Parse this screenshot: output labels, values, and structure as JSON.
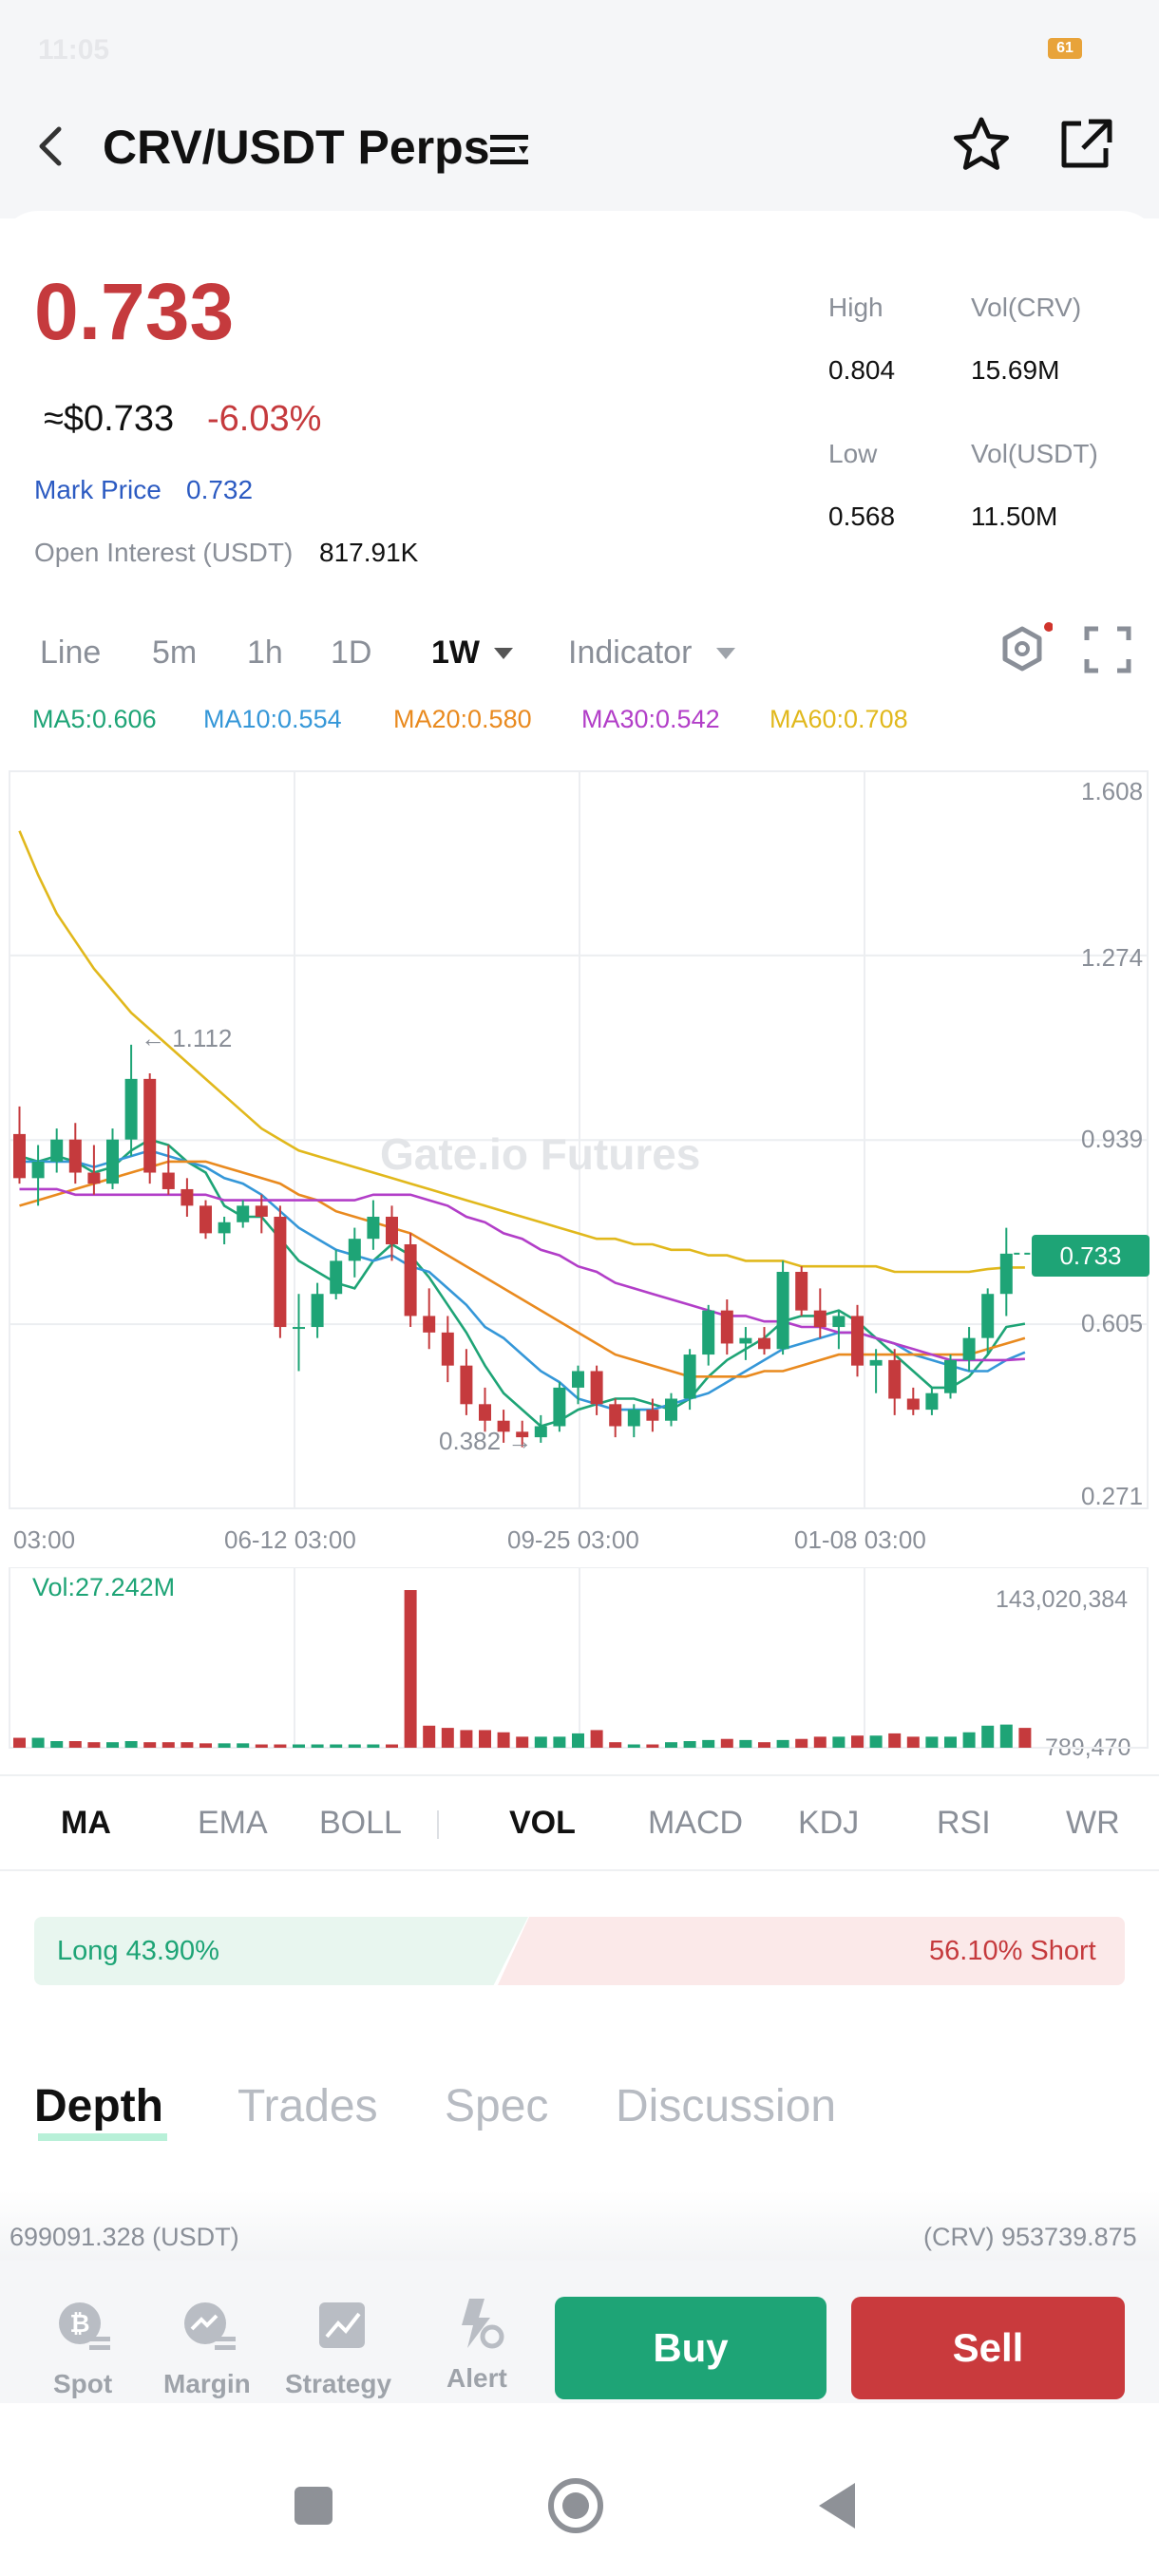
{
  "status_bar": {
    "time": "11:05",
    "battery": "61"
  },
  "header": {
    "title": "CRV/USDT Perps"
  },
  "ticker": {
    "price": "0.733",
    "usd_price": "≈$0.733",
    "change": "-6.03%",
    "mark_price_label": "Mark Price",
    "mark_price_value": "0.732",
    "open_interest_label": "Open Interest (USDT)",
    "open_interest_value": "817.91K",
    "stats": {
      "high_label": "High",
      "high_value": "0.804",
      "low_label": "Low",
      "low_value": "0.568",
      "vol_crv_label": "Vol(CRV)",
      "vol_crv_value": "15.69M",
      "vol_usdt_label": "Vol(USDT)",
      "vol_usdt_value": "11.50M"
    }
  },
  "timeframes": {
    "line": "Line",
    "m5": "5m",
    "h1": "1h",
    "d1": "1D",
    "w1": "1W",
    "indicator": "Indicator"
  },
  "ma_legend": {
    "ma5": "MA5:0.606",
    "ma10": "MA10:0.554",
    "ma20": "MA20:0.580",
    "ma30": "MA30:0.542",
    "ma60": "MA60:0.708"
  },
  "colors": {
    "up": "#1ea476",
    "down": "#c53a3d",
    "ma5": "#1ea476",
    "ma10": "#3597d8",
    "ma20": "#e98a1f",
    "ma30": "#b23ec8",
    "ma60": "#e1b81c"
  },
  "chart": {
    "watermark": "Gate.io Futures",
    "y_labels": [
      "1.608",
      "1.274",
      "0.939",
      "0.605",
      "0.271"
    ],
    "x_labels": [
      "03:00",
      "06-12 03:00",
      "09-25 03:00",
      "01-08 03:00"
    ],
    "current_price_tag": "0.733",
    "high_marker": "← 1.112",
    "low_marker": "0.382 →",
    "vol_label": "Vol:27.242M",
    "vol_max": "143,020,384",
    "vol_min": "789,470"
  },
  "chart_data": {
    "type": "candlestick",
    "title": "",
    "ylim": [
      0.271,
      1.608
    ],
    "candles": [
      {
        "o": 0.95,
        "h": 1.0,
        "l": 0.86,
        "c": 0.87
      },
      {
        "o": 0.87,
        "h": 0.93,
        "l": 0.82,
        "c": 0.9
      },
      {
        "o": 0.9,
        "h": 0.96,
        "l": 0.88,
        "c": 0.94
      },
      {
        "o": 0.94,
        "h": 0.97,
        "l": 0.86,
        "c": 0.88
      },
      {
        "o": 0.88,
        "h": 0.93,
        "l": 0.84,
        "c": 0.86
      },
      {
        "o": 0.86,
        "h": 0.96,
        "l": 0.85,
        "c": 0.94
      },
      {
        "o": 0.94,
        "h": 1.112,
        "l": 0.91,
        "c": 1.05
      },
      {
        "o": 1.05,
        "h": 1.06,
        "l": 0.86,
        "c": 0.88
      },
      {
        "o": 0.88,
        "h": 0.93,
        "l": 0.84,
        "c": 0.85
      },
      {
        "o": 0.85,
        "h": 0.87,
        "l": 0.8,
        "c": 0.82
      },
      {
        "o": 0.82,
        "h": 0.83,
        "l": 0.76,
        "c": 0.77
      },
      {
        "o": 0.77,
        "h": 0.8,
        "l": 0.75,
        "c": 0.79
      },
      {
        "o": 0.79,
        "h": 0.83,
        "l": 0.78,
        "c": 0.82
      },
      {
        "o": 0.82,
        "h": 0.84,
        "l": 0.77,
        "c": 0.8
      },
      {
        "o": 0.8,
        "h": 0.82,
        "l": 0.58,
        "c": 0.6
      },
      {
        "o": 0.6,
        "h": 0.66,
        "l": 0.52,
        "c": 0.6
      },
      {
        "o": 0.6,
        "h": 0.68,
        "l": 0.58,
        "c": 0.66
      },
      {
        "o": 0.66,
        "h": 0.74,
        "l": 0.65,
        "c": 0.72
      },
      {
        "o": 0.72,
        "h": 0.78,
        "l": 0.69,
        "c": 0.76
      },
      {
        "o": 0.76,
        "h": 0.83,
        "l": 0.74,
        "c": 0.8
      },
      {
        "o": 0.8,
        "h": 0.82,
        "l": 0.72,
        "c": 0.75
      },
      {
        "o": 0.75,
        "h": 0.77,
        "l": 0.6,
        "c": 0.62
      },
      {
        "o": 0.62,
        "h": 0.67,
        "l": 0.56,
        "c": 0.59
      },
      {
        "o": 0.59,
        "h": 0.62,
        "l": 0.5,
        "c": 0.53
      },
      {
        "o": 0.53,
        "h": 0.56,
        "l": 0.44,
        "c": 0.46
      },
      {
        "o": 0.46,
        "h": 0.49,
        "l": 0.41,
        "c": 0.43
      },
      {
        "o": 0.43,
        "h": 0.45,
        "l": 0.39,
        "c": 0.41
      },
      {
        "o": 0.41,
        "h": 0.43,
        "l": 0.382,
        "c": 0.4
      },
      {
        "o": 0.4,
        "h": 0.44,
        "l": 0.39,
        "c": 0.42
      },
      {
        "o": 0.42,
        "h": 0.5,
        "l": 0.41,
        "c": 0.49
      },
      {
        "o": 0.49,
        "h": 0.53,
        "l": 0.46,
        "c": 0.52
      },
      {
        "o": 0.52,
        "h": 0.53,
        "l": 0.44,
        "c": 0.46
      },
      {
        "o": 0.46,
        "h": 0.47,
        "l": 0.4,
        "c": 0.42
      },
      {
        "o": 0.42,
        "h": 0.46,
        "l": 0.4,
        "c": 0.45
      },
      {
        "o": 0.45,
        "h": 0.47,
        "l": 0.41,
        "c": 0.43
      },
      {
        "o": 0.43,
        "h": 0.48,
        "l": 0.42,
        "c": 0.47
      },
      {
        "o": 0.47,
        "h": 0.56,
        "l": 0.45,
        "c": 0.55
      },
      {
        "o": 0.55,
        "h": 0.64,
        "l": 0.53,
        "c": 0.63
      },
      {
        "o": 0.63,
        "h": 0.65,
        "l": 0.55,
        "c": 0.57
      },
      {
        "o": 0.57,
        "h": 0.6,
        "l": 0.54,
        "c": 0.58
      },
      {
        "o": 0.58,
        "h": 0.6,
        "l": 0.55,
        "c": 0.56
      },
      {
        "o": 0.56,
        "h": 0.72,
        "l": 0.55,
        "c": 0.7
      },
      {
        "o": 0.7,
        "h": 0.71,
        "l": 0.62,
        "c": 0.63
      },
      {
        "o": 0.63,
        "h": 0.67,
        "l": 0.58,
        "c": 0.6
      },
      {
        "o": 0.6,
        "h": 0.63,
        "l": 0.56,
        "c": 0.62
      },
      {
        "o": 0.62,
        "h": 0.64,
        "l": 0.51,
        "c": 0.53
      },
      {
        "o": 0.53,
        "h": 0.56,
        "l": 0.48,
        "c": 0.54
      },
      {
        "o": 0.54,
        "h": 0.56,
        "l": 0.44,
        "c": 0.47
      },
      {
        "o": 0.47,
        "h": 0.49,
        "l": 0.44,
        "c": 0.45
      },
      {
        "o": 0.45,
        "h": 0.49,
        "l": 0.44,
        "c": 0.48
      },
      {
        "o": 0.48,
        "h": 0.55,
        "l": 0.47,
        "c": 0.54
      },
      {
        "o": 0.54,
        "h": 0.6,
        "l": 0.52,
        "c": 0.58
      },
      {
        "o": 0.58,
        "h": 0.67,
        "l": 0.55,
        "c": 0.66
      },
      {
        "o": 0.66,
        "h": 0.78,
        "l": 0.62,
        "c": 0.733
      }
    ],
    "volumes": [
      9,
      9,
      6,
      6,
      5,
      5,
      6,
      5,
      5,
      5,
      4,
      4,
      4,
      3,
      3,
      3,
      3,
      3,
      3,
      3,
      3,
      143,
      20,
      18,
      16,
      16,
      14,
      10,
      10,
      10,
      13,
      16,
      5,
      3,
      3,
      5,
      6,
      7,
      8,
      7,
      5,
      7,
      8,
      10,
      10,
      11,
      11,
      13,
      10,
      10,
      10,
      14,
      20,
      21,
      18
    ],
    "ma_series": [
      {
        "name": "MA5",
        "values": [
          0.91,
          0.9,
          0.91,
          0.9,
          0.88,
          0.89,
          0.92,
          0.94,
          0.93,
          0.9,
          0.88,
          0.82,
          0.8,
          0.8,
          0.76,
          0.72,
          0.7,
          0.68,
          0.67,
          0.72,
          0.75,
          0.73,
          0.69,
          0.64,
          0.59,
          0.53,
          0.48,
          0.45,
          0.42,
          0.43,
          0.45,
          0.46,
          0.47,
          0.47,
          0.46,
          0.45,
          0.47,
          0.51,
          0.54,
          0.56,
          0.58,
          0.61,
          0.62,
          0.62,
          0.63,
          0.61,
          0.58,
          0.55,
          0.52,
          0.49,
          0.49,
          0.51,
          0.55,
          0.6,
          0.606
        ]
      },
      {
        "name": "MA10",
        "values": [
          0.9,
          0.9,
          0.9,
          0.9,
          0.89,
          0.9,
          0.91,
          0.92,
          0.91,
          0.9,
          0.89,
          0.87,
          0.86,
          0.84,
          0.81,
          0.78,
          0.76,
          0.74,
          0.73,
          0.72,
          0.73,
          0.71,
          0.7,
          0.67,
          0.64,
          0.6,
          0.58,
          0.55,
          0.52,
          0.5,
          0.47,
          0.46,
          0.45,
          0.45,
          0.45,
          0.46,
          0.47,
          0.48,
          0.5,
          0.52,
          0.54,
          0.56,
          0.57,
          0.58,
          0.59,
          0.59,
          0.58,
          0.57,
          0.55,
          0.54,
          0.53,
          0.52,
          0.52,
          0.54,
          0.554
        ]
      },
      {
        "name": "MA20",
        "values": [
          0.82,
          0.83,
          0.84,
          0.85,
          0.86,
          0.87,
          0.88,
          0.89,
          0.9,
          0.9,
          0.9,
          0.89,
          0.88,
          0.87,
          0.86,
          0.84,
          0.83,
          0.81,
          0.8,
          0.79,
          0.78,
          0.77,
          0.75,
          0.73,
          0.71,
          0.69,
          0.67,
          0.65,
          0.63,
          0.61,
          0.59,
          0.57,
          0.55,
          0.54,
          0.53,
          0.52,
          0.51,
          0.51,
          0.51,
          0.51,
          0.52,
          0.52,
          0.53,
          0.54,
          0.55,
          0.55,
          0.55,
          0.55,
          0.55,
          0.55,
          0.55,
          0.55,
          0.56,
          0.57,
          0.58
        ]
      },
      {
        "name": "MA30",
        "values": [
          0.85,
          0.85,
          0.85,
          0.84,
          0.84,
          0.84,
          0.84,
          0.84,
          0.84,
          0.84,
          0.84,
          0.83,
          0.83,
          0.83,
          0.83,
          0.83,
          0.83,
          0.83,
          0.83,
          0.84,
          0.84,
          0.84,
          0.83,
          0.82,
          0.8,
          0.79,
          0.77,
          0.76,
          0.74,
          0.73,
          0.71,
          0.7,
          0.68,
          0.67,
          0.66,
          0.65,
          0.64,
          0.63,
          0.62,
          0.62,
          0.61,
          0.61,
          0.6,
          0.6,
          0.59,
          0.59,
          0.58,
          0.57,
          0.56,
          0.55,
          0.54,
          0.54,
          0.54,
          0.54,
          0.542
        ]
      },
      {
        "name": "MA60",
        "values": [
          1.5,
          1.42,
          1.35,
          1.3,
          1.25,
          1.21,
          1.17,
          1.14,
          1.11,
          1.08,
          1.05,
          1.02,
          0.99,
          0.96,
          0.94,
          0.92,
          0.91,
          0.9,
          0.89,
          0.88,
          0.87,
          0.86,
          0.85,
          0.84,
          0.83,
          0.82,
          0.81,
          0.8,
          0.79,
          0.78,
          0.77,
          0.76,
          0.76,
          0.75,
          0.75,
          0.74,
          0.74,
          0.73,
          0.73,
          0.72,
          0.72,
          0.72,
          0.71,
          0.71,
          0.71,
          0.71,
          0.71,
          0.7,
          0.7,
          0.7,
          0.7,
          0.7,
          0.705,
          0.708,
          0.708
        ]
      }
    ]
  },
  "indicator_tabs": {
    "ma": "MA",
    "ema": "EMA",
    "boll": "BOLL",
    "vol": "VOL",
    "macd": "MACD",
    "kdj": "KDJ",
    "rsi": "RSI",
    "wr": "WR"
  },
  "long_short": {
    "long": "Long 43.90%",
    "short": "56.10% Short",
    "long_ratio": 43.9
  },
  "detail_tabs": {
    "depth": "Depth",
    "trades": "Trades",
    "spec": "Spec",
    "discussion": "Discussion"
  },
  "depth": {
    "left": "699091.328 (USDT)",
    "right": "(CRV) 953739.875"
  },
  "bottom_nav": {
    "spot": "Spot",
    "margin": "Margin",
    "strategy": "Strategy",
    "alert": "Alert"
  },
  "actions": {
    "buy": "Buy",
    "sell": "Sell",
    "buy_color": "#1ea476",
    "sell_color": "#c93a3d"
  }
}
